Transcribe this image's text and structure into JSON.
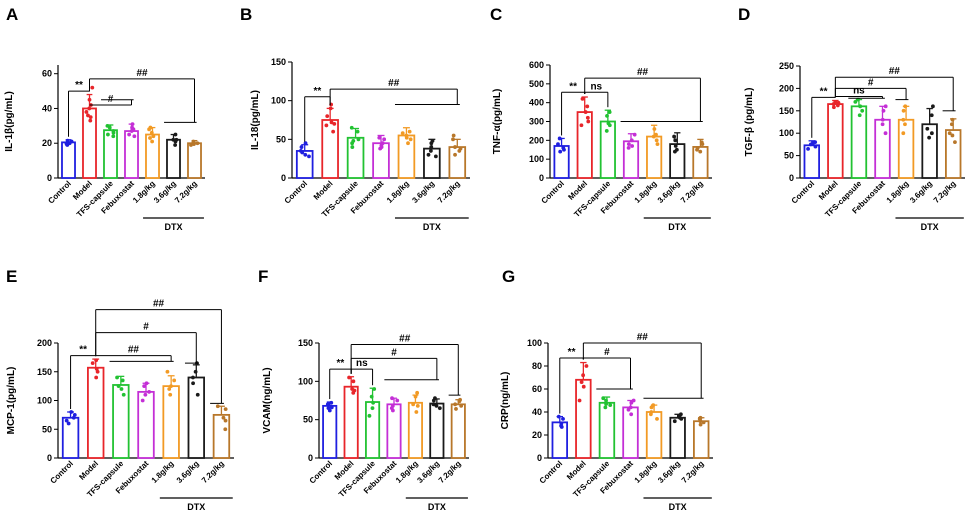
{
  "colors": [
    "#1f1fe0",
    "#e8252a",
    "#22c232",
    "#c42fd6",
    "#f29a24",
    "#1a1a1a",
    "#b8772a"
  ],
  "chart_data": [
    {
      "type": "bar",
      "letter": "A",
      "ylabel": "IL-1β(pg/mL)",
      "yticks": [
        0,
        20,
        40,
        60
      ],
      "ylim": [
        0,
        65
      ],
      "categories": [
        "Control",
        "Model",
        "TFS-capsule",
        "Febuxostat",
        "1.8g/kg",
        "3.6g/kg",
        "7.2g/kg"
      ],
      "group_label": "DTX",
      "values": [
        20.5,
        40,
        27.5,
        27,
        25,
        22,
        20
      ],
      "errors": [
        1.5,
        8,
        3,
        4,
        4,
        3,
        1.5
      ],
      "points": [
        [
          19,
          20,
          21,
          21.5,
          20,
          19.5
        ],
        [
          33,
          38,
          45,
          52,
          36,
          42,
          35,
          40
        ],
        [
          24,
          26,
          30,
          29,
          27,
          25
        ],
        [
          25,
          28,
          31,
          24,
          27,
          29
        ],
        [
          21,
          24,
          29,
          26,
          23,
          28
        ],
        [
          19,
          22,
          25,
          22,
          21
        ],
        [
          19,
          20,
          21,
          19.5,
          20.5,
          20
        ]
      ],
      "annotations": [
        {
          "text": "**",
          "from": 0,
          "to": 1,
          "level": 50
        },
        {
          "text": "#",
          "from": 1,
          "to": 2,
          "to_end": 3,
          "level": 42,
          "under": 45
        },
        {
          "text": "##",
          "from": 1,
          "to": 5,
          "to_end": 6,
          "level": 57,
          "under": 32
        }
      ]
    },
    {
      "type": "bar",
      "letter": "B",
      "ylabel": "IL-18(pg/mL)",
      "yticks": [
        0,
        50,
        100,
        150
      ],
      "ylim": [
        0,
        150
      ],
      "categories": [
        "Control",
        "Model",
        "TFS-capsule",
        "Febuxostat",
        "1.8g/kg",
        "3.6g/kg",
        "7.2g/kg"
      ],
      "group_label": "DTX",
      "values": [
        35,
        75,
        52,
        45,
        55,
        38,
        40
      ],
      "errors": [
        8,
        15,
        12,
        10,
        10,
        12,
        10
      ],
      "points": [
        [
          30,
          40,
          45,
          35,
          28,
          33
        ],
        [
          60,
          70,
          80,
          90,
          95,
          72,
          68
        ],
        [
          40,
          50,
          60,
          65,
          48,
          45
        ],
        [
          38,
          45,
          52,
          40,
          50,
          42
        ],
        [
          45,
          52,
          60,
          58,
          55,
          50
        ],
        [
          28,
          35,
          45,
          48,
          30,
          40
        ],
        [
          30,
          40,
          50,
          55,
          35,
          38
        ]
      ],
      "annotations": [
        {
          "text": "**",
          "from": 0,
          "to": 1,
          "level": 105
        },
        {
          "text": "##",
          "from": 1,
          "to": 4,
          "to_end": 6,
          "level": 115,
          "under": 95
        }
      ]
    },
    {
      "type": "bar",
      "letter": "C",
      "ylabel": "TNF-α(pg/mL)",
      "yticks": [
        0,
        100,
        200,
        300,
        400,
        500,
        600
      ],
      "ylim": [
        0,
        600
      ],
      "categories": [
        "Control",
        "Model",
        "TFS-capsule",
        "Febuxostat",
        "1.8g/kg",
        "3.6g/kg",
        "7.2g/kg"
      ],
      "group_label": "DTX",
      "values": [
        170,
        350,
        300,
        195,
        220,
        180,
        165
      ],
      "errors": [
        40,
        80,
        60,
        40,
        60,
        60,
        40
      ],
      "points": [
        [
          150,
          180,
          210,
          160,
          140
        ],
        [
          280,
          320,
          380,
          420,
          300,
          350
        ],
        [
          250,
          280,
          330,
          350,
          290
        ],
        [
          170,
          200,
          230,
          180,
          160
        ],
        [
          180,
          220,
          260,
          230,
          200
        ],
        [
          140,
          170,
          220,
          200,
          150
        ],
        [
          140,
          160,
          190,
          180,
          150
        ]
      ],
      "annotations": [
        {
          "text": "**",
          "from": 0,
          "to": 1,
          "level": 455
        },
        {
          "text": "ns",
          "from": 1,
          "to": 2,
          "level": 455
        },
        {
          "text": "##",
          "from": 1,
          "to": 3,
          "to_end": 6,
          "level": 530,
          "under": 300
        }
      ]
    },
    {
      "type": "bar",
      "letter": "D",
      "ylabel": "TGF-β (pg/mL)",
      "yticks": [
        0,
        50,
        100,
        150,
        200,
        250
      ],
      "ylim": [
        0,
        250
      ],
      "categories": [
        "Control",
        "Model",
        "TFS-capsule",
        "Febuxostat",
        "1.8g/kg",
        "3.6g/kg",
        "7.2g/kg"
      ],
      "group_label": "DTX",
      "values": [
        73,
        165,
        160,
        130,
        130,
        120,
        107
      ],
      "errors": [
        10,
        8,
        15,
        30,
        30,
        35,
        25
      ],
      "points": [
        [
          65,
          70,
          80,
          75,
          78
        ],
        [
          158,
          162,
          170,
          168,
          165
        ],
        [
          140,
          160,
          170,
          175,
          150
        ],
        [
          100,
          120,
          150,
          160,
          130
        ],
        [
          100,
          120,
          150,
          160,
          130
        ],
        [
          90,
          110,
          140,
          160,
          100
        ],
        [
          80,
          100,
          120,
          130,
          95
        ]
      ],
      "annotations": [
        {
          "text": "**",
          "from": 0,
          "to": 1,
          "level": 180
        },
        {
          "text": "ns",
          "from": 1,
          "to": 2,
          "to_end": 3,
          "level": 182,
          "under": 178
        },
        {
          "text": "#",
          "from": 1,
          "to": 4,
          "to_end": 4,
          "level": 200,
          "under": 175
        },
        {
          "text": "##",
          "from": 1,
          "to": 6,
          "to_end": 6,
          "level": 225,
          "under": 150
        }
      ]
    },
    {
      "type": "bar",
      "letter": "E",
      "ylabel": "MCP-1(pg/mL)",
      "yticks": [
        0,
        50,
        100,
        150,
        200
      ],
      "ylim": [
        0,
        200
      ],
      "categories": [
        "Control",
        "Model",
        "TFS-capsule",
        "Febuxostat",
        "1.8g/kg",
        "3.6g/kg",
        "7.2g/kg"
      ],
      "group_label": "DTX",
      "values": [
        70,
        157,
        127,
        115,
        125,
        140,
        75
      ],
      "errors": [
        10,
        15,
        15,
        15,
        18,
        22,
        15
      ],
      "points": [
        [
          60,
          70,
          80,
          65,
          75
        ],
        [
          140,
          150,
          165,
          170,
          155
        ],
        [
          110,
          120,
          135,
          140,
          125
        ],
        [
          100,
          110,
          125,
          130,
          115
        ],
        [
          110,
          120,
          135,
          150,
          125
        ],
        [
          110,
          130,
          150,
          165,
          140
        ],
        [
          50,
          65,
          85,
          90,
          70
        ]
      ],
      "annotations": [
        {
          "text": "**",
          "from": 0,
          "to": 1,
          "level": 178
        },
        {
          "text": "##",
          "from": 1,
          "to": 2,
          "to_end": 4,
          "level": 178,
          "under": 168
        },
        {
          "text": "#",
          "from": 1,
          "to": 5,
          "to_end": 5,
          "level": 218,
          "under": 165
        },
        {
          "text": "##",
          "from": 1,
          "to": 6,
          "to_end": 6,
          "level": 258,
          "under": 95
        }
      ]
    },
    {
      "type": "bar",
      "letter": "F",
      "ylabel": "VCAM(ng/mL)",
      "yticks": [
        0,
        50,
        100,
        150
      ],
      "ylim": [
        0,
        150
      ],
      "categories": [
        "Control",
        "Model",
        "TFS-capsule",
        "Febuxostat",
        "1.8g/kg",
        "3.6g/kg",
        "7.2g/kg"
      ],
      "group_label": "DTX",
      "values": [
        68,
        93,
        73,
        70,
        72,
        71,
        70
      ],
      "errors": [
        5,
        13,
        18,
        8,
        10,
        6,
        6
      ],
      "points": [
        [
          62,
          66,
          70,
          72,
          65
        ],
        [
          85,
          90,
          100,
          105,
          88
        ],
        [
          55,
          65,
          80,
          90,
          72
        ],
        [
          62,
          68,
          75,
          78,
          65
        ],
        [
          60,
          70,
          80,
          85,
          68
        ],
        [
          65,
          70,
          75,
          78,
          68
        ],
        [
          64,
          68,
          74,
          76,
          70
        ]
      ],
      "annotations": [
        {
          "text": "**",
          "from": 0,
          "to": 1,
          "level": 116
        },
        {
          "text": "ns",
          "from": 1,
          "to": 2,
          "level": 116
        },
        {
          "text": "#",
          "from": 1,
          "to": 3,
          "to_end": 5,
          "level": 130,
          "under": 102
        },
        {
          "text": "##",
          "from": 1,
          "to": 6,
          "to_end": 6,
          "level": 148,
          "under": 82
        }
      ]
    },
    {
      "type": "bar",
      "letter": "G",
      "ylabel": "CRP(ng/mL)",
      "yticks": [
        0,
        20,
        40,
        60,
        80,
        100
      ],
      "ylim": [
        0,
        100
      ],
      "categories": [
        "Control",
        "Model",
        "TFS-capsule",
        "Febuxostat",
        "1.8g/kg",
        "3.6g/kg",
        "7.2g/kg"
      ],
      "group_label": "DTX",
      "values": [
        31,
        68,
        48,
        44,
        40,
        35,
        32
      ],
      "errors": [
        5,
        15,
        5,
        6,
        6,
        3,
        3
      ],
      "points": [
        [
          27,
          30,
          34,
          36,
          28
        ],
        [
          50,
          62,
          72,
          80,
          66
        ],
        [
          44,
          47,
          52,
          50,
          46
        ],
        [
          38,
          42,
          48,
          50,
          44
        ],
        [
          34,
          38,
          44,
          46,
          40
        ],
        [
          32,
          34,
          37,
          38,
          35
        ],
        [
          29,
          31,
          34,
          35,
          32
        ]
      ],
      "annotations": [
        {
          "text": "**",
          "from": 0,
          "to": 1,
          "level": 87
        },
        {
          "text": "#",
          "from": 1,
          "to": 2,
          "to_end": 3,
          "level": 87,
          "under": 60
        },
        {
          "text": "##",
          "from": 1,
          "to": 4,
          "to_end": 6,
          "level": 100,
          "under": 52
        }
      ]
    }
  ]
}
